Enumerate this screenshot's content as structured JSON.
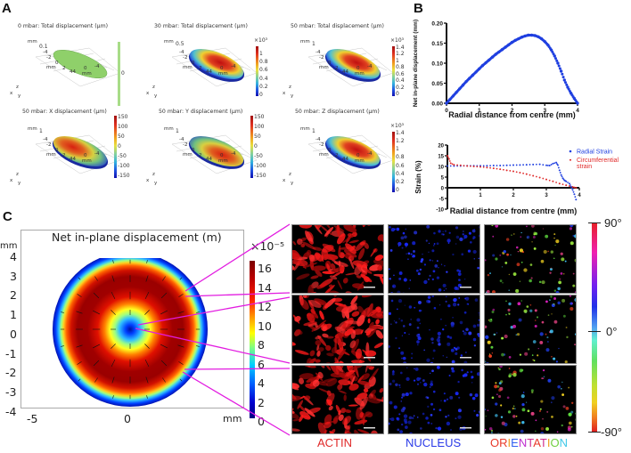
{
  "panels": {
    "A": {
      "letter": "A",
      "plots": [
        {
          "title": "0 mbar: Total displacement (µm)",
          "multiplier": "",
          "colorbar_ticks": [
            "0"
          ],
          "colormap": "uniform-green",
          "zaxis_top": "0.1"
        },
        {
          "title": "30 mbar: Total displacement (µm)",
          "multiplier": "×10³",
          "colorbar_ticks": [
            "1",
            "0.8",
            "0.6",
            "0.4",
            "0.2",
            "0"
          ],
          "colormap": "jet",
          "zaxis_top": "0.5"
        },
        {
          "title": "50 mbar:  Total displacement (µm)",
          "multiplier": "×10³",
          "colorbar_ticks": [
            "1.4",
            "1.2",
            "1",
            "0.8",
            "0.6",
            "0.4",
            "0.2",
            "0"
          ],
          "colormap": "jet",
          "zaxis_top": "1"
        },
        {
          "title": "50 mbar: X displacement (µm)",
          "multiplier": "",
          "colorbar_ticks": [
            "150",
            "100",
            "50",
            "0",
            "-50",
            "-100",
            "-150"
          ],
          "colormap": "jet",
          "zaxis_top": "1"
        },
        {
          "title": "50 mbar: Y displacement (µm)",
          "multiplier": "",
          "colorbar_ticks": [
            "150",
            "100",
            "50",
            "0",
            "-50",
            "-100",
            "-150"
          ],
          "colormap": "jet",
          "zaxis_top": "1"
        },
        {
          "title": "50 mbar: Z displacement (µm)",
          "multiplier": "×10³",
          "colorbar_ticks": [
            "1.4",
            "1.2",
            "1",
            "0.8",
            "0.6",
            "0.4",
            "0.2",
            "0"
          ],
          "colormap": "jet",
          "zaxis_top": "1"
        }
      ],
      "axis_labels": {
        "mm": "mm",
        "tick_m4": "-4",
        "tick_m2": "-2",
        "tick_0": "0",
        "tick_2": "2",
        "tick_44": "44",
        "tick_m4b": "-4"
      },
      "triad": {
        "x": "x",
        "y": "y",
        "z": "z"
      }
    },
    "B": {
      "letter": "B"
    },
    "C": {
      "letter": "C",
      "contour_title": "Net in-plane displacement (m)",
      "y_unit": "mm",
      "x_unit": "mm",
      "y_ticks": [
        "4",
        "3",
        "2",
        "1",
        "0",
        "-1",
        "-2",
        "-3",
        "-4"
      ],
      "x_ticks": [
        "-5",
        "0"
      ],
      "colorbar_multiplier": "×10⁻⁵",
      "colorbar_ticks": [
        "16",
        "14",
        "12",
        "10",
        "8",
        "6",
        "4",
        "2",
        "0"
      ],
      "column_labels": {
        "actin": "ACTIN",
        "nucleus": "NUCLEUS"
      },
      "orientation_letters": [
        "O",
        "R",
        "I",
        "E",
        "N",
        "T",
        "A",
        "T",
        "I",
        "O",
        "N"
      ],
      "orientation_letter_colors": [
        "#e83a2a",
        "#e83a2a",
        "#f0a020",
        "#3060f0",
        "#c030d0",
        "#d03090",
        "#e83a2a",
        "#d03090",
        "#f0a020",
        "#70d040",
        "#40c8e8"
      ],
      "orientation_colorbar": {
        "top": "90°",
        "mid": "0°",
        "bottom": "-90°"
      },
      "column_label_colors": {
        "actin": "#e02a2a",
        "nucleus": "#2a3ae8"
      }
    }
  },
  "chart_data": [
    {
      "type": "scatter",
      "title": "",
      "xlabel": "Radial distance from centre (mm)",
      "ylabel": "Net in-plane displacement (mm)",
      "xlim": [
        0,
        4
      ],
      "ylim": [
        0,
        0.2
      ],
      "x_ticks": [
        "0",
        "1",
        "2",
        "3",
        "4"
      ],
      "y_ticks": [
        "0.00",
        "0.05",
        "0.10",
        "0.15",
        "0.20"
      ],
      "series": [
        {
          "name": "Net in-plane displacement",
          "color": "#1f3fe0",
          "x": [
            0,
            0.1,
            0.2,
            0.3,
            0.4,
            0.5,
            0.6,
            0.7,
            0.8,
            0.9,
            1.0,
            1.1,
            1.2,
            1.3,
            1.4,
            1.5,
            1.6,
            1.7,
            1.8,
            1.9,
            2.0,
            2.1,
            2.2,
            2.3,
            2.4,
            2.5,
            2.6,
            2.7,
            2.8,
            2.9,
            3.0,
            3.1,
            3.2,
            3.3,
            3.4,
            3.5,
            3.6,
            3.7,
            3.8,
            3.9,
            4.0
          ],
          "y": [
            0,
            0.009,
            0.018,
            0.027,
            0.036,
            0.045,
            0.054,
            0.062,
            0.07,
            0.078,
            0.086,
            0.094,
            0.101,
            0.108,
            0.115,
            0.122,
            0.128,
            0.134,
            0.14,
            0.146,
            0.152,
            0.157,
            0.161,
            0.165,
            0.168,
            0.17,
            0.17,
            0.169,
            0.166,
            0.161,
            0.154,
            0.145,
            0.133,
            0.118,
            0.1,
            0.08,
            0.058,
            0.04,
            0.025,
            0.012,
            0
          ]
        }
      ]
    },
    {
      "type": "scatter",
      "title": "",
      "xlabel": "Radial distance from centre (mm)",
      "ylabel": "Strain (%)",
      "xlim": [
        0,
        4
      ],
      "ylim": [
        -10,
        20
      ],
      "x_ticks": [
        "1",
        "2",
        "3",
        "4"
      ],
      "y_ticks": [
        "20",
        "15",
        "10",
        "5",
        "0",
        "-5",
        "-10"
      ],
      "legend": "right",
      "series": [
        {
          "name": "Radial Strain",
          "color": "#1f3fe0",
          "x": [
            0,
            0.2,
            0.4,
            0.6,
            0.8,
            1.0,
            1.2,
            1.4,
            1.6,
            1.8,
            2.0,
            2.2,
            2.4,
            2.6,
            2.8,
            3.0,
            3.1,
            3.2,
            3.3,
            3.35,
            3.4,
            3.45,
            3.5,
            3.55,
            3.6,
            3.7,
            3.75,
            3.8,
            3.85,
            3.9
          ],
          "y": [
            10.2,
            10.2,
            10.2,
            10.3,
            10.3,
            10.3,
            10.3,
            10.4,
            10.4,
            10.5,
            10.6,
            10.7,
            10.8,
            10.9,
            11.0,
            10.5,
            10.4,
            11.3,
            11.8,
            10.6,
            8.2,
            6,
            4.5,
            3.5,
            3,
            2,
            0.5,
            -1,
            -3,
            -5.5
          ]
        },
        {
          "name": "Circumferential strain",
          "color": "#e02a2a",
          "x": [
            0,
            0.05,
            0.1,
            0.2,
            0.4,
            0.6,
            0.8,
            1.0,
            1.2,
            1.4,
            1.6,
            1.8,
            2.0,
            2.2,
            2.4,
            2.6,
            2.8,
            3.0,
            3.2,
            3.4,
            3.6,
            3.8,
            3.9
          ],
          "y": [
            15,
            13.5,
            11.5,
            10.8,
            10.5,
            10.2,
            10.0,
            9.8,
            9.5,
            9.1,
            8.7,
            8.2,
            7.7,
            7.1,
            6.4,
            5.6,
            4.8,
            3.9,
            3.0,
            2.0,
            1.2,
            0.4,
            0
          ]
        }
      ]
    }
  ]
}
